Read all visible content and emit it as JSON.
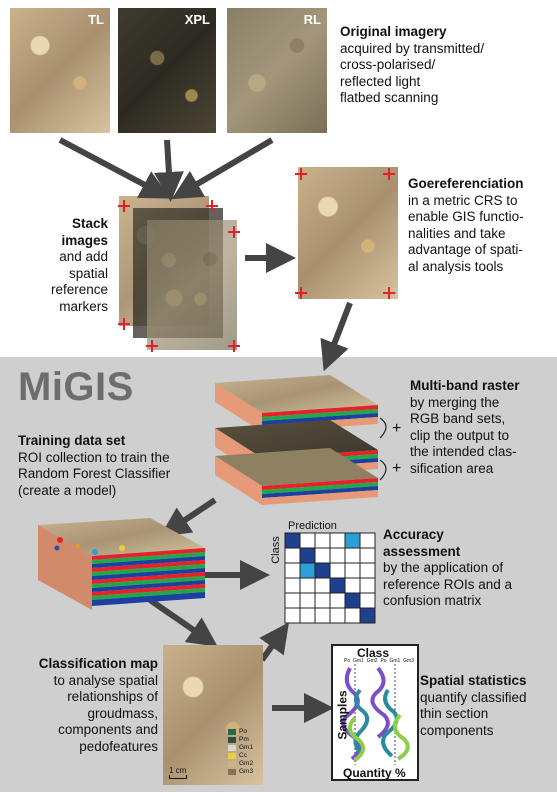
{
  "top_images": {
    "tl_label": "TL",
    "xpl_label": "XPL",
    "rl_label": "RL"
  },
  "original": {
    "title": "Original imagery",
    "lines": [
      "acquired by transmitted/",
      "cross-polarised/",
      "reflected light",
      "flatbed scanning"
    ]
  },
  "stack": {
    "lines_bold": [
      "Stack",
      "images"
    ],
    "lines": [
      "and add",
      "spatial",
      "reference",
      "markers"
    ]
  },
  "georef": {
    "title": "Goereferenciation",
    "lines": [
      "in a metric CRS to",
      "enable GIS functio-",
      "nalities and take",
      "advantage of spati-",
      "al analysis tools"
    ]
  },
  "logo": "MiGIS",
  "multiband": {
    "title": "Multi-band raster",
    "lines": [
      "by merging the",
      "RGB band sets,",
      "clip the output to",
      "the intended clas-",
      "sification area"
    ],
    "plus": "+"
  },
  "training": {
    "title": "Training data set",
    "lines": [
      "ROI collection to train the",
      "Random Forest Classifier",
      "(create a model)"
    ]
  },
  "matrix": {
    "prediction_label": "Prediction",
    "class_label": "Class"
  },
  "accuracy": {
    "title_lines": [
      "Accuracy",
      "assessment"
    ],
    "lines": [
      "by the application of",
      "reference ROIs and a",
      "confusion matrix"
    ]
  },
  "classification": {
    "title": "Classification map",
    "lines": [
      "to analyse spatial",
      "relationships of",
      "groudmass,",
      "components and",
      "pedofeatures"
    ],
    "legend": [
      "Po",
      "Pm",
      "Gm1",
      "Cc",
      "Gm2",
      "Gm3"
    ],
    "legend_colors": [
      "#1f6b4a",
      "#2f4f3f",
      "#d9d6cf",
      "#e8d23a",
      "#c9b48a",
      "#8b6f4e"
    ],
    "scale": "1 cm"
  },
  "stats_chart": {
    "class_label": "Class",
    "column_labels": [
      "Po",
      "Gm1",
      "Gm2",
      "Po",
      "Gm1",
      "Gm3"
    ],
    "samples_label": "Samples",
    "quantity_label": "Quantity %"
  },
  "spatial": {
    "title": "Spatial statistics",
    "lines": [
      "quantify classified",
      "thin section",
      "components"
    ]
  },
  "colors": {
    "panel": "#cfcfcf",
    "arrow": "#444444",
    "marker": "#e0202a",
    "band_red": "#e5222a",
    "band_green": "#22a84a",
    "band_blue": "#1d3fa0",
    "slab_side": "#e69a78",
    "matrix_fill": "#1f3f8f",
    "matrix_highlight": "#2aa0d8"
  }
}
